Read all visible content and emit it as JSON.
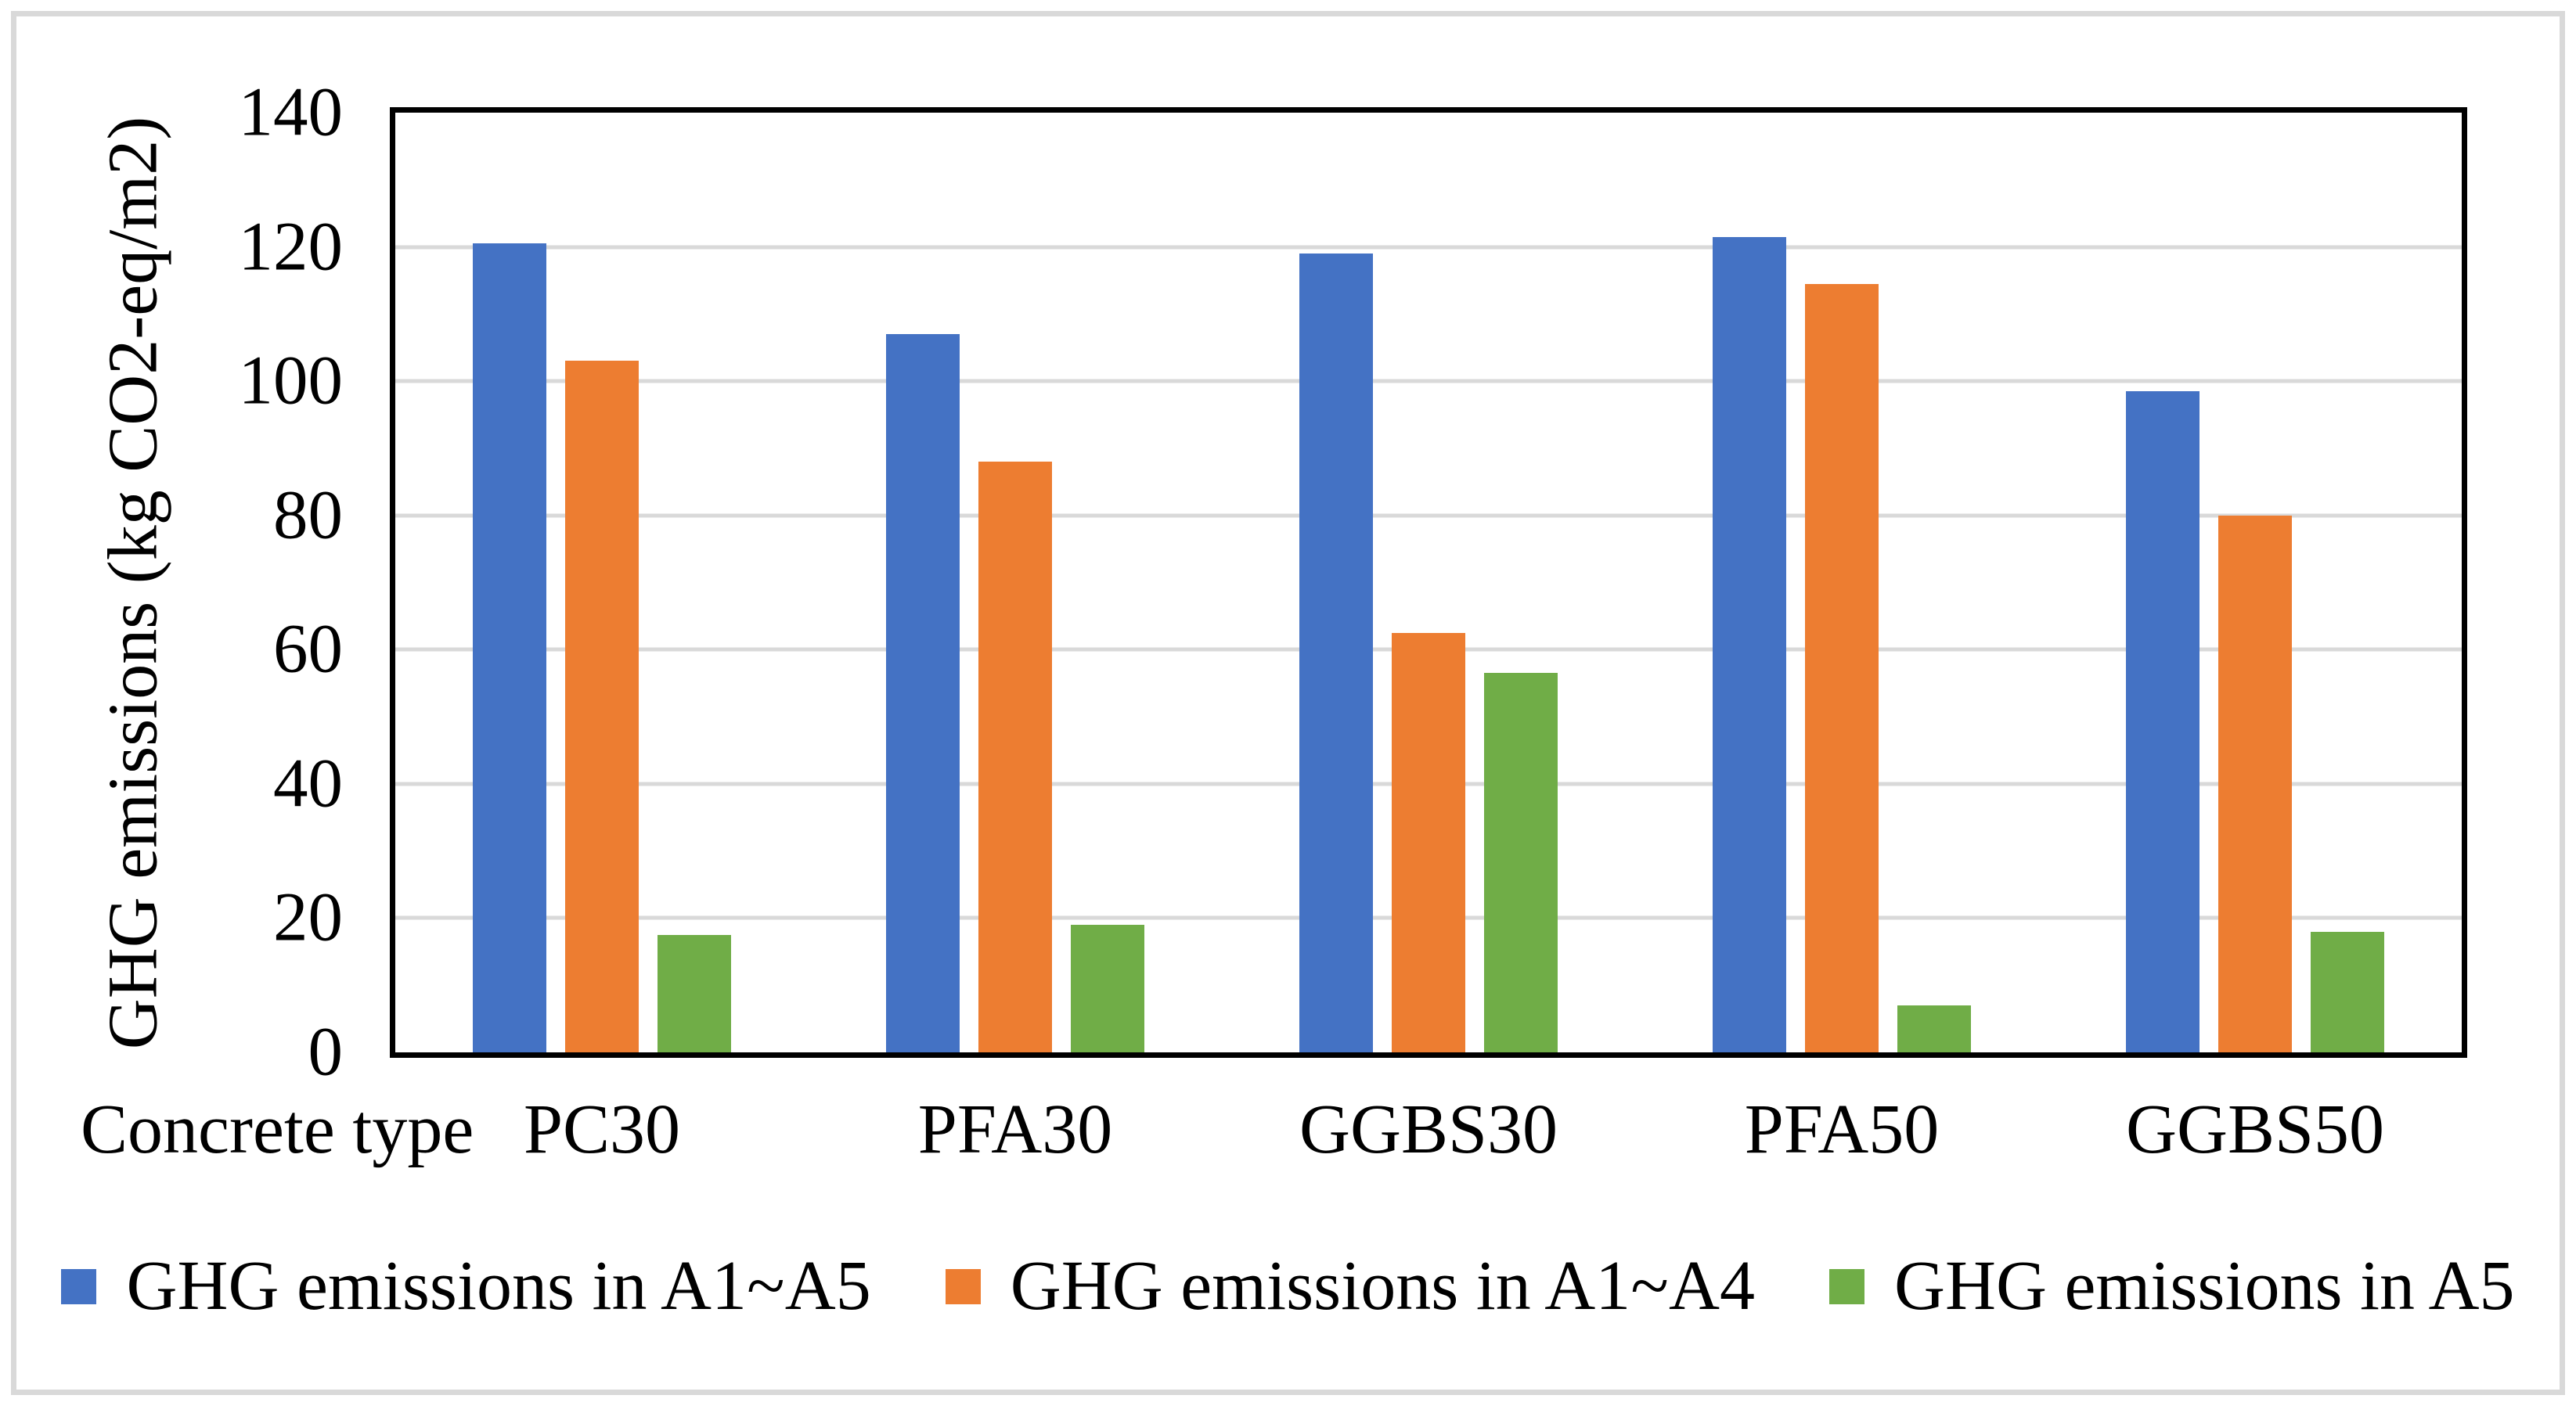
{
  "chart_data": {
    "type": "bar",
    "title": "",
    "xlabel": "Concrete type",
    "ylabel": "GHG emissions (kg CO2-eq/m2)",
    "ylim": [
      0,
      140
    ],
    "yticks": [
      0,
      20,
      40,
      60,
      80,
      100,
      120,
      140
    ],
    "grid": "horizontal",
    "legend_position": "bottom",
    "categories": [
      "PC30",
      "PFA30",
      "GGBS30",
      "PFA50",
      "GGBS50"
    ],
    "series": [
      {
        "name": "GHG emissions in A1~A5",
        "color": "#4472C4",
        "values": [
          120.5,
          107,
          119,
          121.5,
          98.5
        ]
      },
      {
        "name": "GHG emissions in A1~A4",
        "color": "#ED7D31",
        "values": [
          103,
          88,
          62.5,
          114.5,
          80
        ]
      },
      {
        "name": "GHG emissions in A5",
        "color": "#70AD47",
        "values": [
          17.5,
          19,
          56.5,
          7,
          18
        ]
      }
    ],
    "colors": {
      "axis": "#000000",
      "gridline": "#D9D9D9",
      "figure_border": "#D9D9D9",
      "background": "#FFFFFF"
    }
  }
}
